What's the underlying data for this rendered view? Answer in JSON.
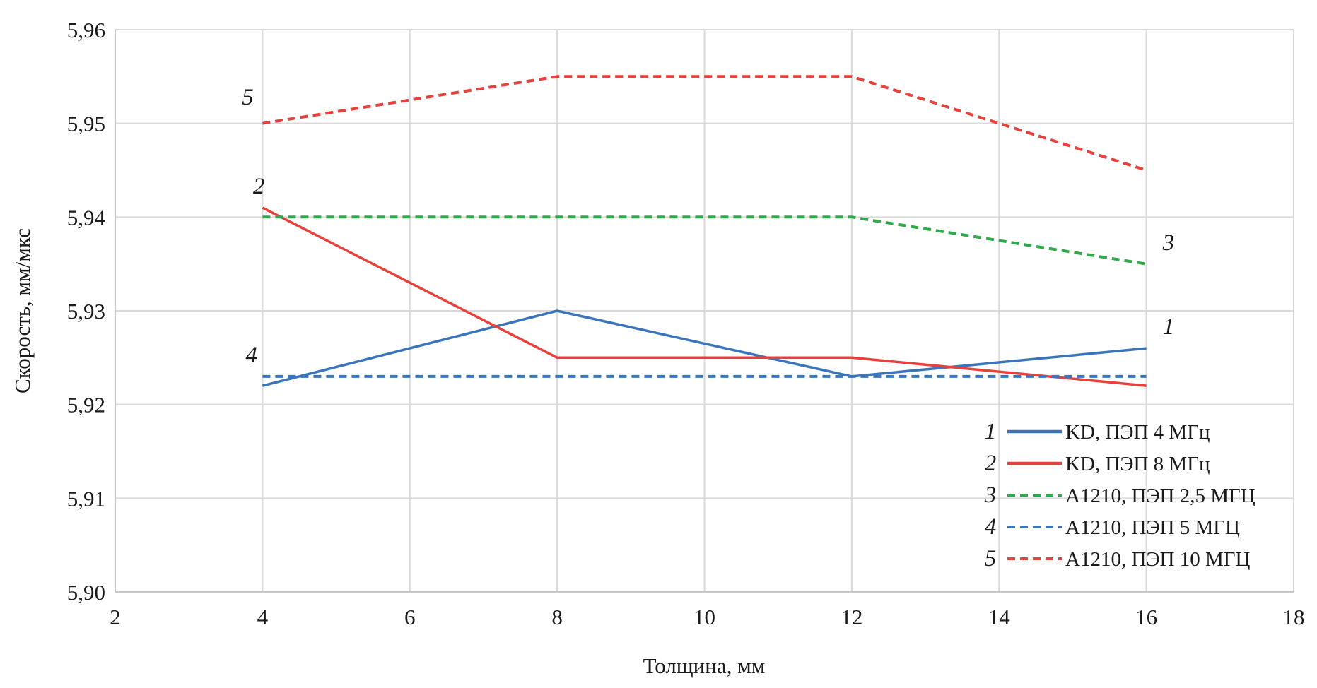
{
  "chart_data": {
    "type": "line",
    "xlabel": "Толщина, мм",
    "ylabel": "Скорость, мм/мкс",
    "xlim": [
      2,
      18
    ],
    "ylim": [
      5.9,
      5.96
    ],
    "x_ticks": [
      2,
      4,
      6,
      8,
      10,
      12,
      14,
      16,
      18
    ],
    "y_tick_values": [
      5.9,
      5.91,
      5.92,
      5.93,
      5.94,
      5.95,
      5.96
    ],
    "y_tick_labels": [
      "5,90",
      "5,91",
      "5,92",
      "5,93",
      "5,94",
      "5,95",
      "5,96"
    ],
    "grid": true,
    "legend_position": "bottom-right",
    "series": [
      {
        "number": "1",
        "name": "KD, ПЭП 4 МГц",
        "color": "#3a75bb",
        "style": "solid",
        "x": [
          4,
          8,
          12,
          16
        ],
        "y": [
          5.922,
          5.93,
          5.923,
          5.926
        ]
      },
      {
        "number": "2",
        "name": "KD, ПЭП 8 МГц",
        "color": "#e8413c",
        "style": "solid",
        "x": [
          4,
          8,
          12,
          16
        ],
        "y": [
          5.941,
          5.925,
          5.925,
          5.922
        ]
      },
      {
        "number": "3",
        "name": "A1210, ПЭП 2,5 МГЦ",
        "color": "#2eaa4a",
        "style": "dashed",
        "x": [
          4,
          8,
          12,
          16
        ],
        "y": [
          5.94,
          5.94,
          5.94,
          5.935
        ]
      },
      {
        "number": "4",
        "name": "A1210, ПЭП 5 МГЦ",
        "color": "#3a75bb",
        "style": "dashed",
        "x": [
          4,
          8,
          12,
          16
        ],
        "y": [
          5.923,
          5.923,
          5.923,
          5.923
        ]
      },
      {
        "number": "5",
        "name": "A1210, ПЭП 10 МГЦ",
        "color": "#e8413c",
        "style": "dashed",
        "x": [
          4,
          8,
          12,
          16
        ],
        "y": [
          5.95,
          5.955,
          5.955,
          5.945
        ]
      }
    ],
    "curve_labels": [
      {
        "text": "5",
        "x": 3.8,
        "y": 5.952
      },
      {
        "text": "2",
        "x": 3.95,
        "y": 5.9425
      },
      {
        "text": "4",
        "x": 3.85,
        "y": 5.9245
      },
      {
        "text": "3",
        "x": 16.3,
        "y": 5.9365
      },
      {
        "text": "1",
        "x": 16.3,
        "y": 5.9275
      }
    ]
  }
}
